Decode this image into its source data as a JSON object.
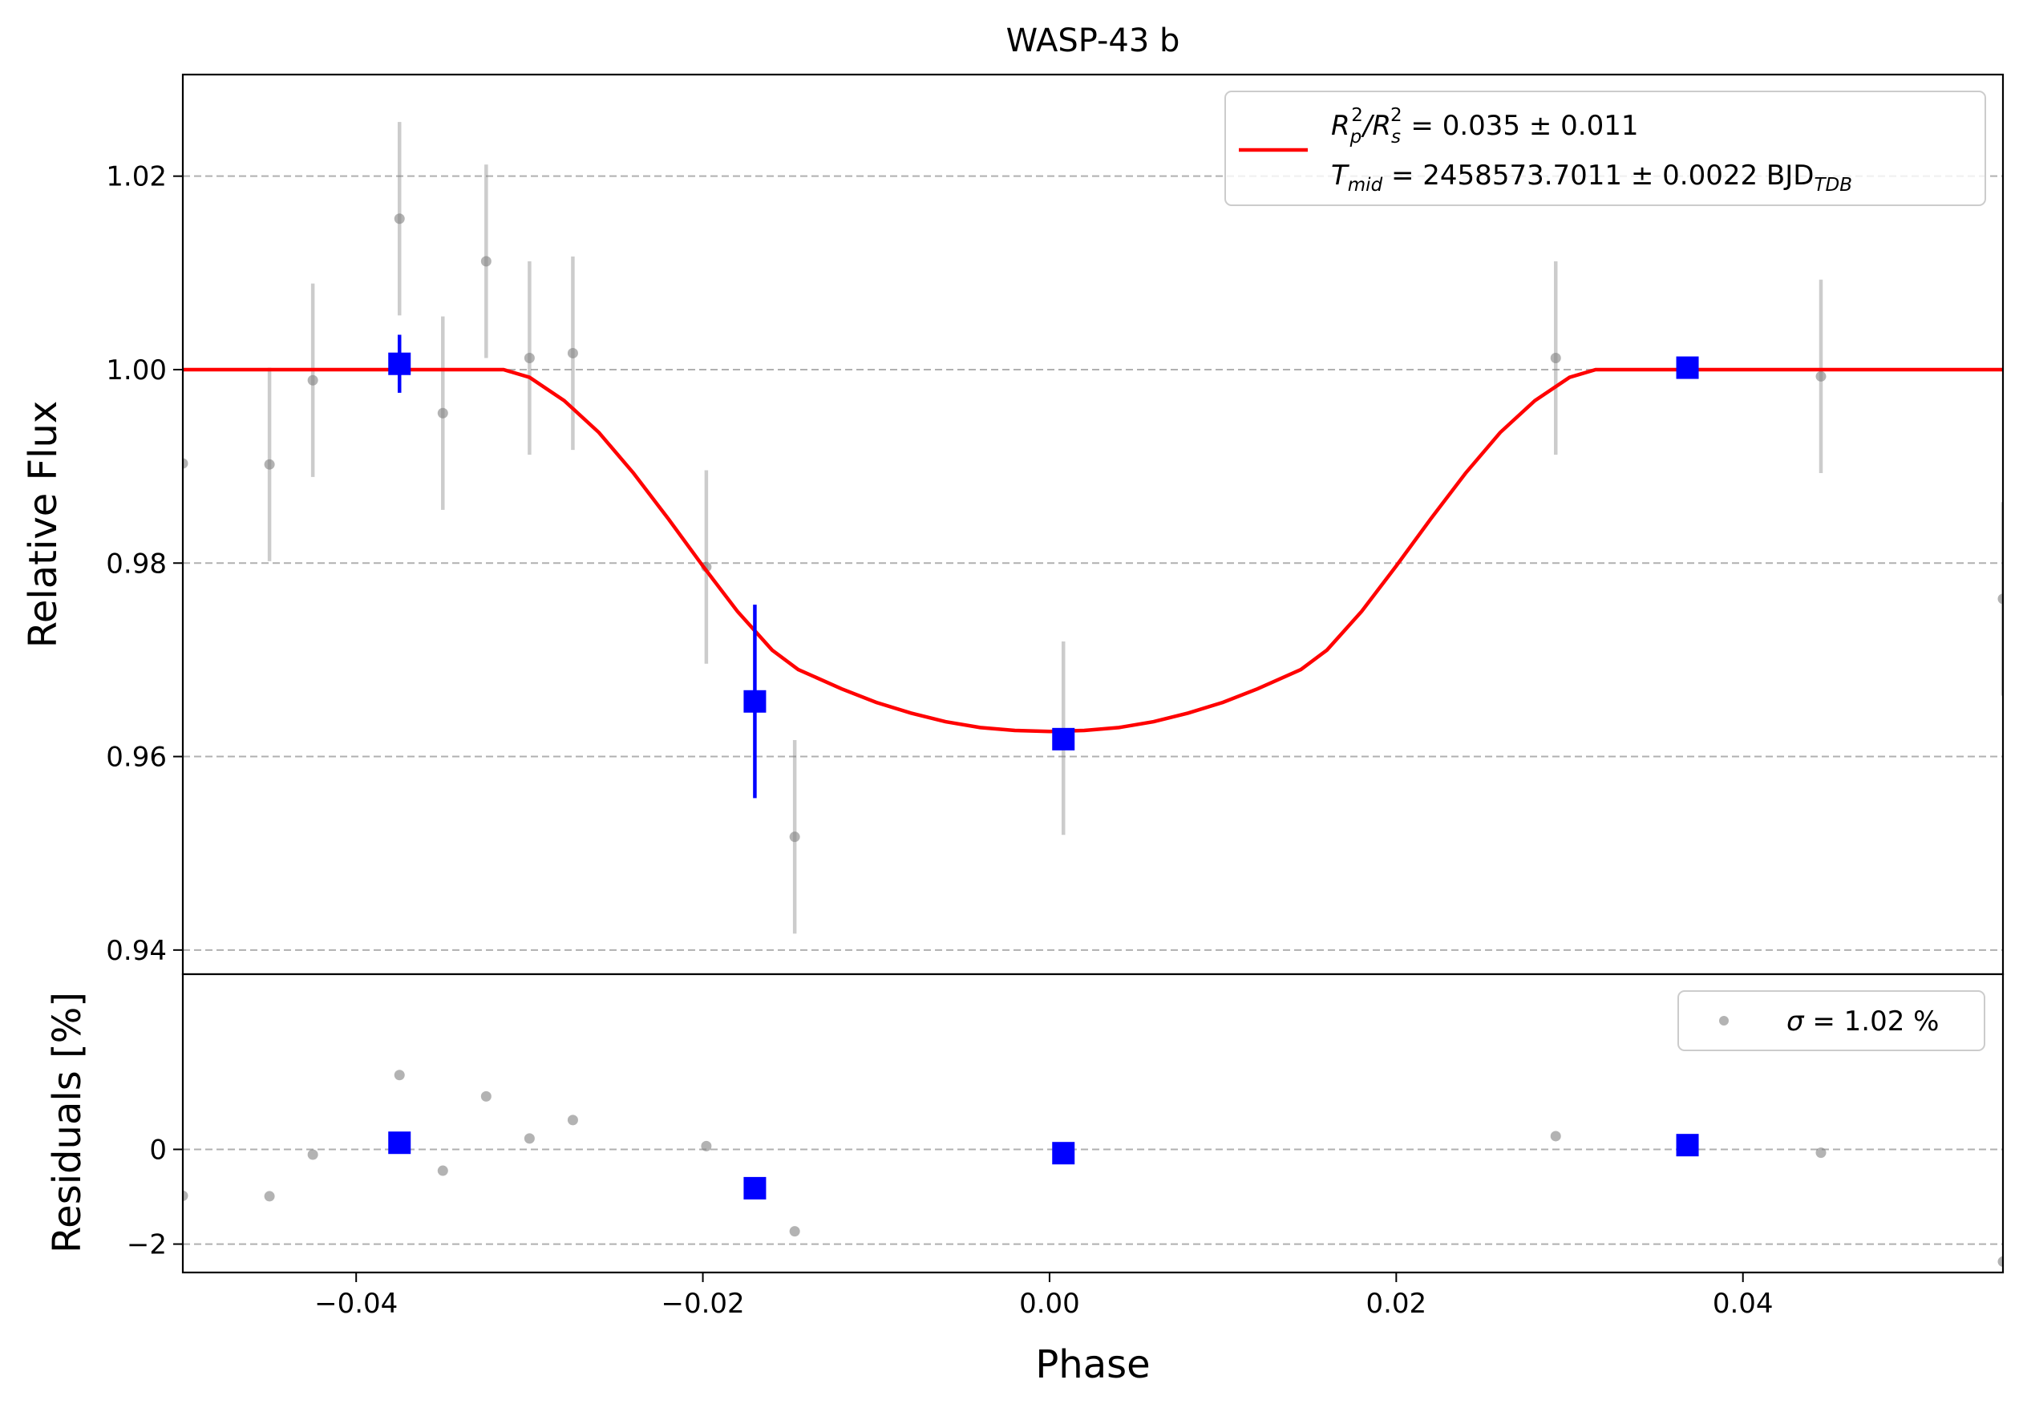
{
  "chart_data": [
    {
      "panel": "main",
      "type": "scatter",
      "title": "WASP-43 b",
      "xlabel": "",
      "ylabel": "Relative Flux",
      "xlim": [
        -0.05,
        0.055
      ],
      "ylim": [
        0.9375,
        1.0305
      ],
      "grid": "horizontal dashed",
      "yticks": [
        0.94,
        0.96,
        0.98,
        1.0,
        1.02
      ],
      "ytick_labels": [
        "0.94",
        "0.96",
        "0.98",
        "1.00",
        "1.02"
      ],
      "legend": {
        "placement": "top-right",
        "line1": {
          "pre": "R",
          "sub1": "p",
          "sup1": "2",
          "mid": "/R",
          "sub2": "s",
          "sup2": "2",
          "post": " = 0.035 ± 0.011"
        },
        "line2": {
          "pre": "T",
          "sub": "mid",
          "mid": " = 2458573.7011 ± 0.0022 BJD",
          "sub2": "TDB"
        }
      },
      "series": [
        {
          "kind": "raw",
          "color": "#808080",
          "points": [
            {
              "x": -0.05,
              "y": 0.9903,
              "err": 0.0
            },
            {
              "x": -0.045,
              "y": 0.9902,
              "err": 0.01
            },
            {
              "x": -0.0425,
              "y": 0.9989,
              "err": 0.01
            },
            {
              "x": -0.0375,
              "y": 1.0156,
              "err": 0.01
            },
            {
              "x": -0.035,
              "y": 0.9955,
              "err": 0.01
            },
            {
              "x": -0.0325,
              "y": 1.0112,
              "err": 0.01
            },
            {
              "x": -0.03,
              "y": 1.0012,
              "err": 0.01
            },
            {
              "x": -0.0275,
              "y": 1.0017,
              "err": 0.01
            },
            {
              "x": -0.0198,
              "y": 0.9796,
              "err": 0.01
            },
            {
              "x": -0.0147,
              "y": 0.9517,
              "err": 0.01
            },
            {
              "x": 0.0008,
              "y": 0.9619,
              "err": 0.01
            },
            {
              "x": 0.0292,
              "y": 1.0012,
              "err": 0.01
            },
            {
              "x": 0.0445,
              "y": 0.9993,
              "err": 0.01
            },
            {
              "x": 0.055,
              "y": 0.9763,
              "err": 0.01
            }
          ]
        },
        {
          "kind": "binned",
          "color": "#0000ff",
          "points": [
            {
              "x": -0.0375,
              "y": 1.0006,
              "err": 0.003
            },
            {
              "x": -0.017,
              "y": 0.9657,
              "err": 0.01
            },
            {
              "x": 0.0008,
              "y": 0.9618,
              "err": 0.0
            },
            {
              "x": 0.0368,
              "y": 1.0002,
              "err": 0.0
            }
          ]
        },
        {
          "kind": "model",
          "color": "#ff0000",
          "x": [
            -0.05,
            -0.0315,
            -0.03,
            -0.028,
            -0.026,
            -0.024,
            -0.022,
            -0.02,
            -0.018,
            -0.016,
            -0.0145,
            -0.012,
            -0.01,
            -0.008,
            -0.006,
            -0.004,
            -0.002,
            0.0,
            0.002,
            0.004,
            0.006,
            0.008,
            0.01,
            0.012,
            0.0145,
            0.016,
            0.018,
            0.02,
            0.022,
            0.024,
            0.026,
            0.028,
            0.03,
            0.0315,
            0.055
          ],
          "y": [
            1.0,
            1.0,
            0.9992,
            0.9968,
            0.9935,
            0.9893,
            0.9846,
            0.9797,
            0.975,
            0.971,
            0.969,
            0.967,
            0.9656,
            0.9645,
            0.9636,
            0.963,
            0.9627,
            0.9626,
            0.9627,
            0.963,
            0.9636,
            0.9645,
            0.9656,
            0.967,
            0.969,
            0.971,
            0.975,
            0.9797,
            0.9846,
            0.9893,
            0.9935,
            0.9968,
            0.9992,
            1.0,
            1.0
          ]
        }
      ]
    },
    {
      "panel": "residuals",
      "type": "scatter",
      "xlabel": "Phase",
      "ylabel": "Residuals [%]",
      "xlim": [
        -0.05,
        0.055
      ],
      "ylim": [
        -2.6,
        3.7
      ],
      "grid": "horizontal dashed",
      "xticks": [
        -0.04,
        -0.02,
        0.0,
        0.02,
        0.04
      ],
      "xtick_labels": [
        "−0.04",
        "−0.02",
        "0.00",
        "0.02",
        "0.04"
      ],
      "yticks": [
        -2,
        0
      ],
      "ytick_labels": [
        "−2",
        "0"
      ],
      "legend": {
        "placement": "top-right",
        "sigma_symbol": "σ",
        "text": " = 1.02 %"
      },
      "series": [
        {
          "kind": "raw",
          "color": "#808080",
          "points": [
            {
              "x": -0.05,
              "y": -0.98
            },
            {
              "x": -0.045,
              "y": -0.99
            },
            {
              "x": -0.0425,
              "y": -0.11
            },
            {
              "x": -0.0375,
              "y": 1.57
            },
            {
              "x": -0.035,
              "y": -0.45
            },
            {
              "x": -0.0325,
              "y": 1.12
            },
            {
              "x": -0.03,
              "y": 0.23
            },
            {
              "x": -0.0275,
              "y": 0.62
            },
            {
              "x": -0.0198,
              "y": 0.07
            },
            {
              "x": -0.0147,
              "y": -1.73
            },
            {
              "x": 0.0292,
              "y": 0.28
            },
            {
              "x": 0.0445,
              "y": -0.07
            },
            {
              "x": 0.055,
              "y": -2.37
            }
          ]
        },
        {
          "kind": "binned",
          "color": "#0000ff",
          "points": [
            {
              "x": -0.0375,
              "y": 0.14
            },
            {
              "x": -0.017,
              "y": -0.82
            },
            {
              "x": 0.0008,
              "y": -0.08
            },
            {
              "x": 0.0368,
              "y": 0.09
            }
          ]
        }
      ]
    }
  ]
}
